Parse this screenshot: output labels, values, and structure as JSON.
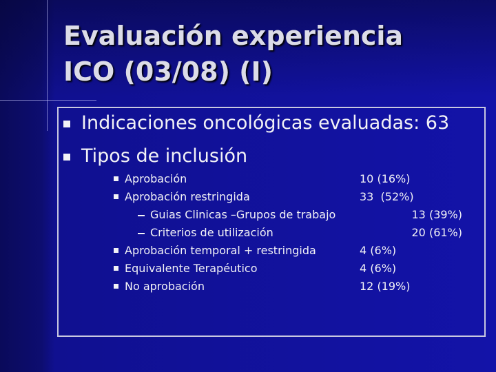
{
  "title": [
    "Evaluación experiencia",
    "ICO (03/08) (I)"
  ],
  "bullets": [
    "Indicaciones oncológicas evaluadas: 63",
    "Tipos de inclusión"
  ],
  "items": [
    {
      "label": "Aprobación",
      "value": "10 (16%)"
    },
    {
      "label": "Aprobación restringida",
      "value": "33  (52%)"
    },
    {
      "label": "Guias Clinicas –Grupos de trabajo",
      "value": "13 (39%)",
      "sub": true
    },
    {
      "label": "Criterios de utilización",
      "value": "20 (61%)",
      "sub": true
    },
    {
      "label": "Aprobación temporal + restringida",
      "value": "4 (6%)"
    },
    {
      "label": "Equivalente Terapéutico",
      "value": "4 (6%)"
    },
    {
      "label": "No aprobación",
      "value": "12 (19%)"
    }
  ]
}
